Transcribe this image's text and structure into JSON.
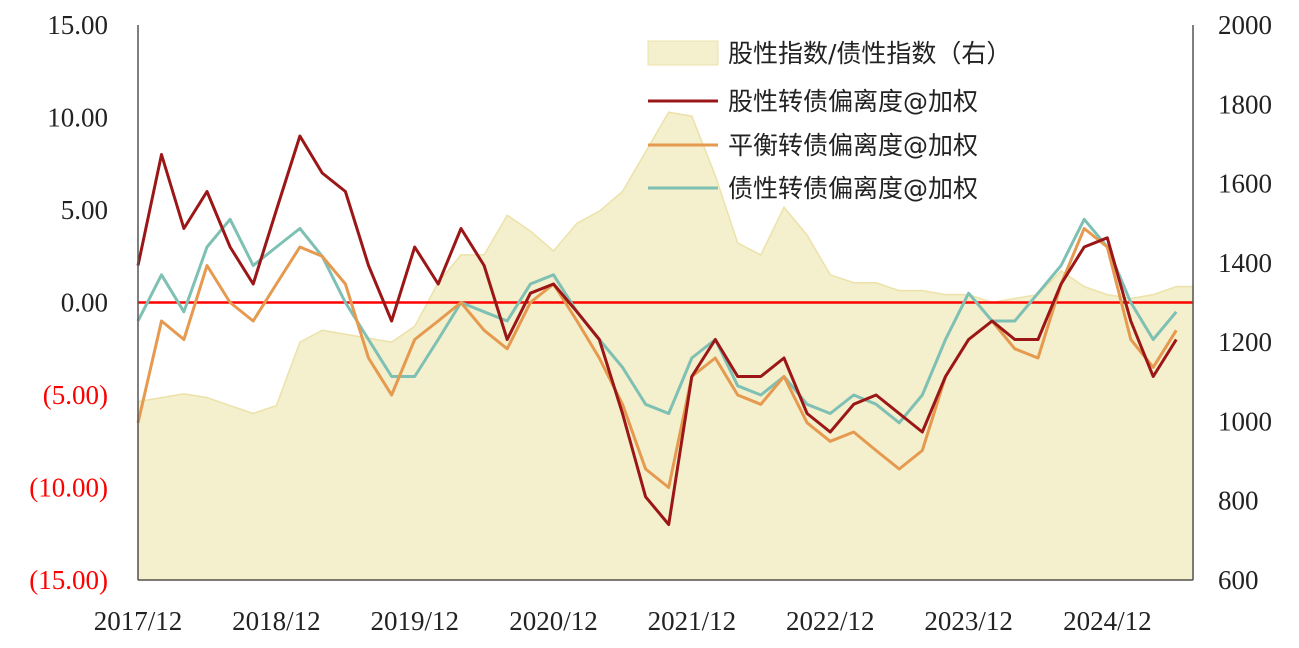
{
  "colors": {
    "stock_bond_ratio_fill": "#f4efcc",
    "stock_bond_ratio_edge": "#ece2a9",
    "stock_like": "#9b1717",
    "balanced": "#e59a50",
    "bond_like": "#7fc0b4",
    "zero_line": "#ff0000",
    "negative_label": "#ff0000",
    "axis": "#555555"
  },
  "chart_data": {
    "type": "line",
    "x_tick_labels": [
      "2017/12",
      "2018/12",
      "2019/12",
      "2020/12",
      "2021/12",
      "2022/12",
      "2023/12",
      "2024/12"
    ],
    "x_range": [
      "2017-12-01",
      "2025-07-15"
    ],
    "y_left": {
      "ylim": [
        -15,
        15
      ],
      "tick_values": [
        15,
        10,
        5,
        0,
        -5,
        -10,
        -15
      ],
      "tick_labels": [
        "15.00",
        "10.00",
        "5.00",
        "0.00",
        "(5.00)",
        "(10.00)",
        "(15.00)"
      ]
    },
    "y_right": {
      "ylim": [
        600,
        2000
      ],
      "tick_values": [
        2000,
        1800,
        1600,
        1400,
        1200,
        1000,
        800,
        600
      ],
      "tick_labels": [
        "2000",
        "1800",
        "1600",
        "1400",
        "1200",
        "1000",
        "800",
        "600"
      ]
    },
    "zero_line": 0,
    "legend_position": "top-right",
    "x": [
      "2017-12",
      "2018-02",
      "2018-04",
      "2018-06",
      "2018-08",
      "2018-10",
      "2018-12",
      "2019-02",
      "2019-04",
      "2019-06",
      "2019-08",
      "2019-10",
      "2019-12",
      "2020-02",
      "2020-04",
      "2020-06",
      "2020-08",
      "2020-10",
      "2020-12",
      "2021-02",
      "2021-04",
      "2021-06",
      "2021-08",
      "2021-10",
      "2021-12",
      "2022-02",
      "2022-04",
      "2022-06",
      "2022-08",
      "2022-10",
      "2022-12",
      "2023-02",
      "2023-04",
      "2023-06",
      "2023-08",
      "2023-10",
      "2023-12",
      "2024-02",
      "2024-04",
      "2024-06",
      "2024-08",
      "2024-10",
      "2024-12",
      "2025-02",
      "2025-04",
      "2025-06"
    ],
    "series": [
      {
        "name": "股性指数/债性指数（右）",
        "axis": "right",
        "kind": "area",
        "values": [
          1050,
          1060,
          1070,
          1060,
          1040,
          1020,
          1040,
          1200,
          1230,
          1220,
          1210,
          1200,
          1240,
          1350,
          1420,
          1420,
          1520,
          1480,
          1430,
          1500,
          1530,
          1580,
          1680,
          1780,
          1770,
          1620,
          1450,
          1420,
          1540,
          1470,
          1370,
          1350,
          1350,
          1330,
          1330,
          1320,
          1320,
          1300,
          1310,
          1320,
          1380,
          1340,
          1320,
          1310,
          1320,
          1340
        ]
      },
      {
        "name": "股性转债偏离度@加权",
        "axis": "left",
        "kind": "line",
        "values": [
          2.0,
          8.0,
          4.0,
          6.0,
          3.0,
          1.0,
          5.0,
          9.0,
          7.0,
          6.0,
          2.0,
          -1.0,
          3.0,
          1.0,
          4.0,
          2.0,
          -2.0,
          0.5,
          1.0,
          -0.5,
          -2.0,
          -6.0,
          -10.5,
          -12.0,
          -4.0,
          -2.0,
          -4.0,
          -4.0,
          -3.0,
          -6.0,
          -7.0,
          -5.5,
          -5.0,
          -6.0,
          -7.0,
          -4.0,
          -2.0,
          -1.0,
          -2.0,
          -2.0,
          1.0,
          3.0,
          3.5,
          -1.0,
          -4.0,
          -2.0
        ]
      },
      {
        "name": "平衡转债偏离度@加权",
        "axis": "left",
        "kind": "line",
        "values": [
          -6.5,
          -1.0,
          -2.0,
          2.0,
          0.0,
          -1.0,
          1.0,
          3.0,
          2.5,
          1.0,
          -3.0,
          -5.0,
          -2.0,
          -1.0,
          0.0,
          -1.5,
          -2.5,
          0.0,
          1.0,
          -1.0,
          -3.0,
          -5.5,
          -9.0,
          -10.0,
          -4.0,
          -3.0,
          -5.0,
          -5.5,
          -4.0,
          -6.5,
          -7.5,
          -7.0,
          -8.0,
          -9.0,
          -8.0,
          -4.0,
          -2.0,
          -1.0,
          -2.5,
          -3.0,
          1.0,
          4.0,
          3.0,
          -2.0,
          -3.5,
          -1.5
        ]
      },
      {
        "name": "债性转债偏离度@加权",
        "axis": "left",
        "kind": "line",
        "values": [
          -1.0,
          1.5,
          -0.5,
          3.0,
          4.5,
          2.0,
          3.0,
          4.0,
          2.5,
          0.0,
          -2.0,
          -4.0,
          -4.0,
          -2.0,
          0.0,
          -0.5,
          -1.0,
          1.0,
          1.5,
          -0.5,
          -2.0,
          -3.5,
          -5.5,
          -6.0,
          -3.0,
          -2.0,
          -4.5,
          -5.0,
          -4.0,
          -5.5,
          -6.0,
          -5.0,
          -5.5,
          -6.5,
          -5.0,
          -2.0,
          0.5,
          -1.0,
          -1.0,
          0.5,
          2.0,
          4.5,
          3.0,
          0.0,
          -2.0,
          -0.5
        ]
      }
    ]
  }
}
